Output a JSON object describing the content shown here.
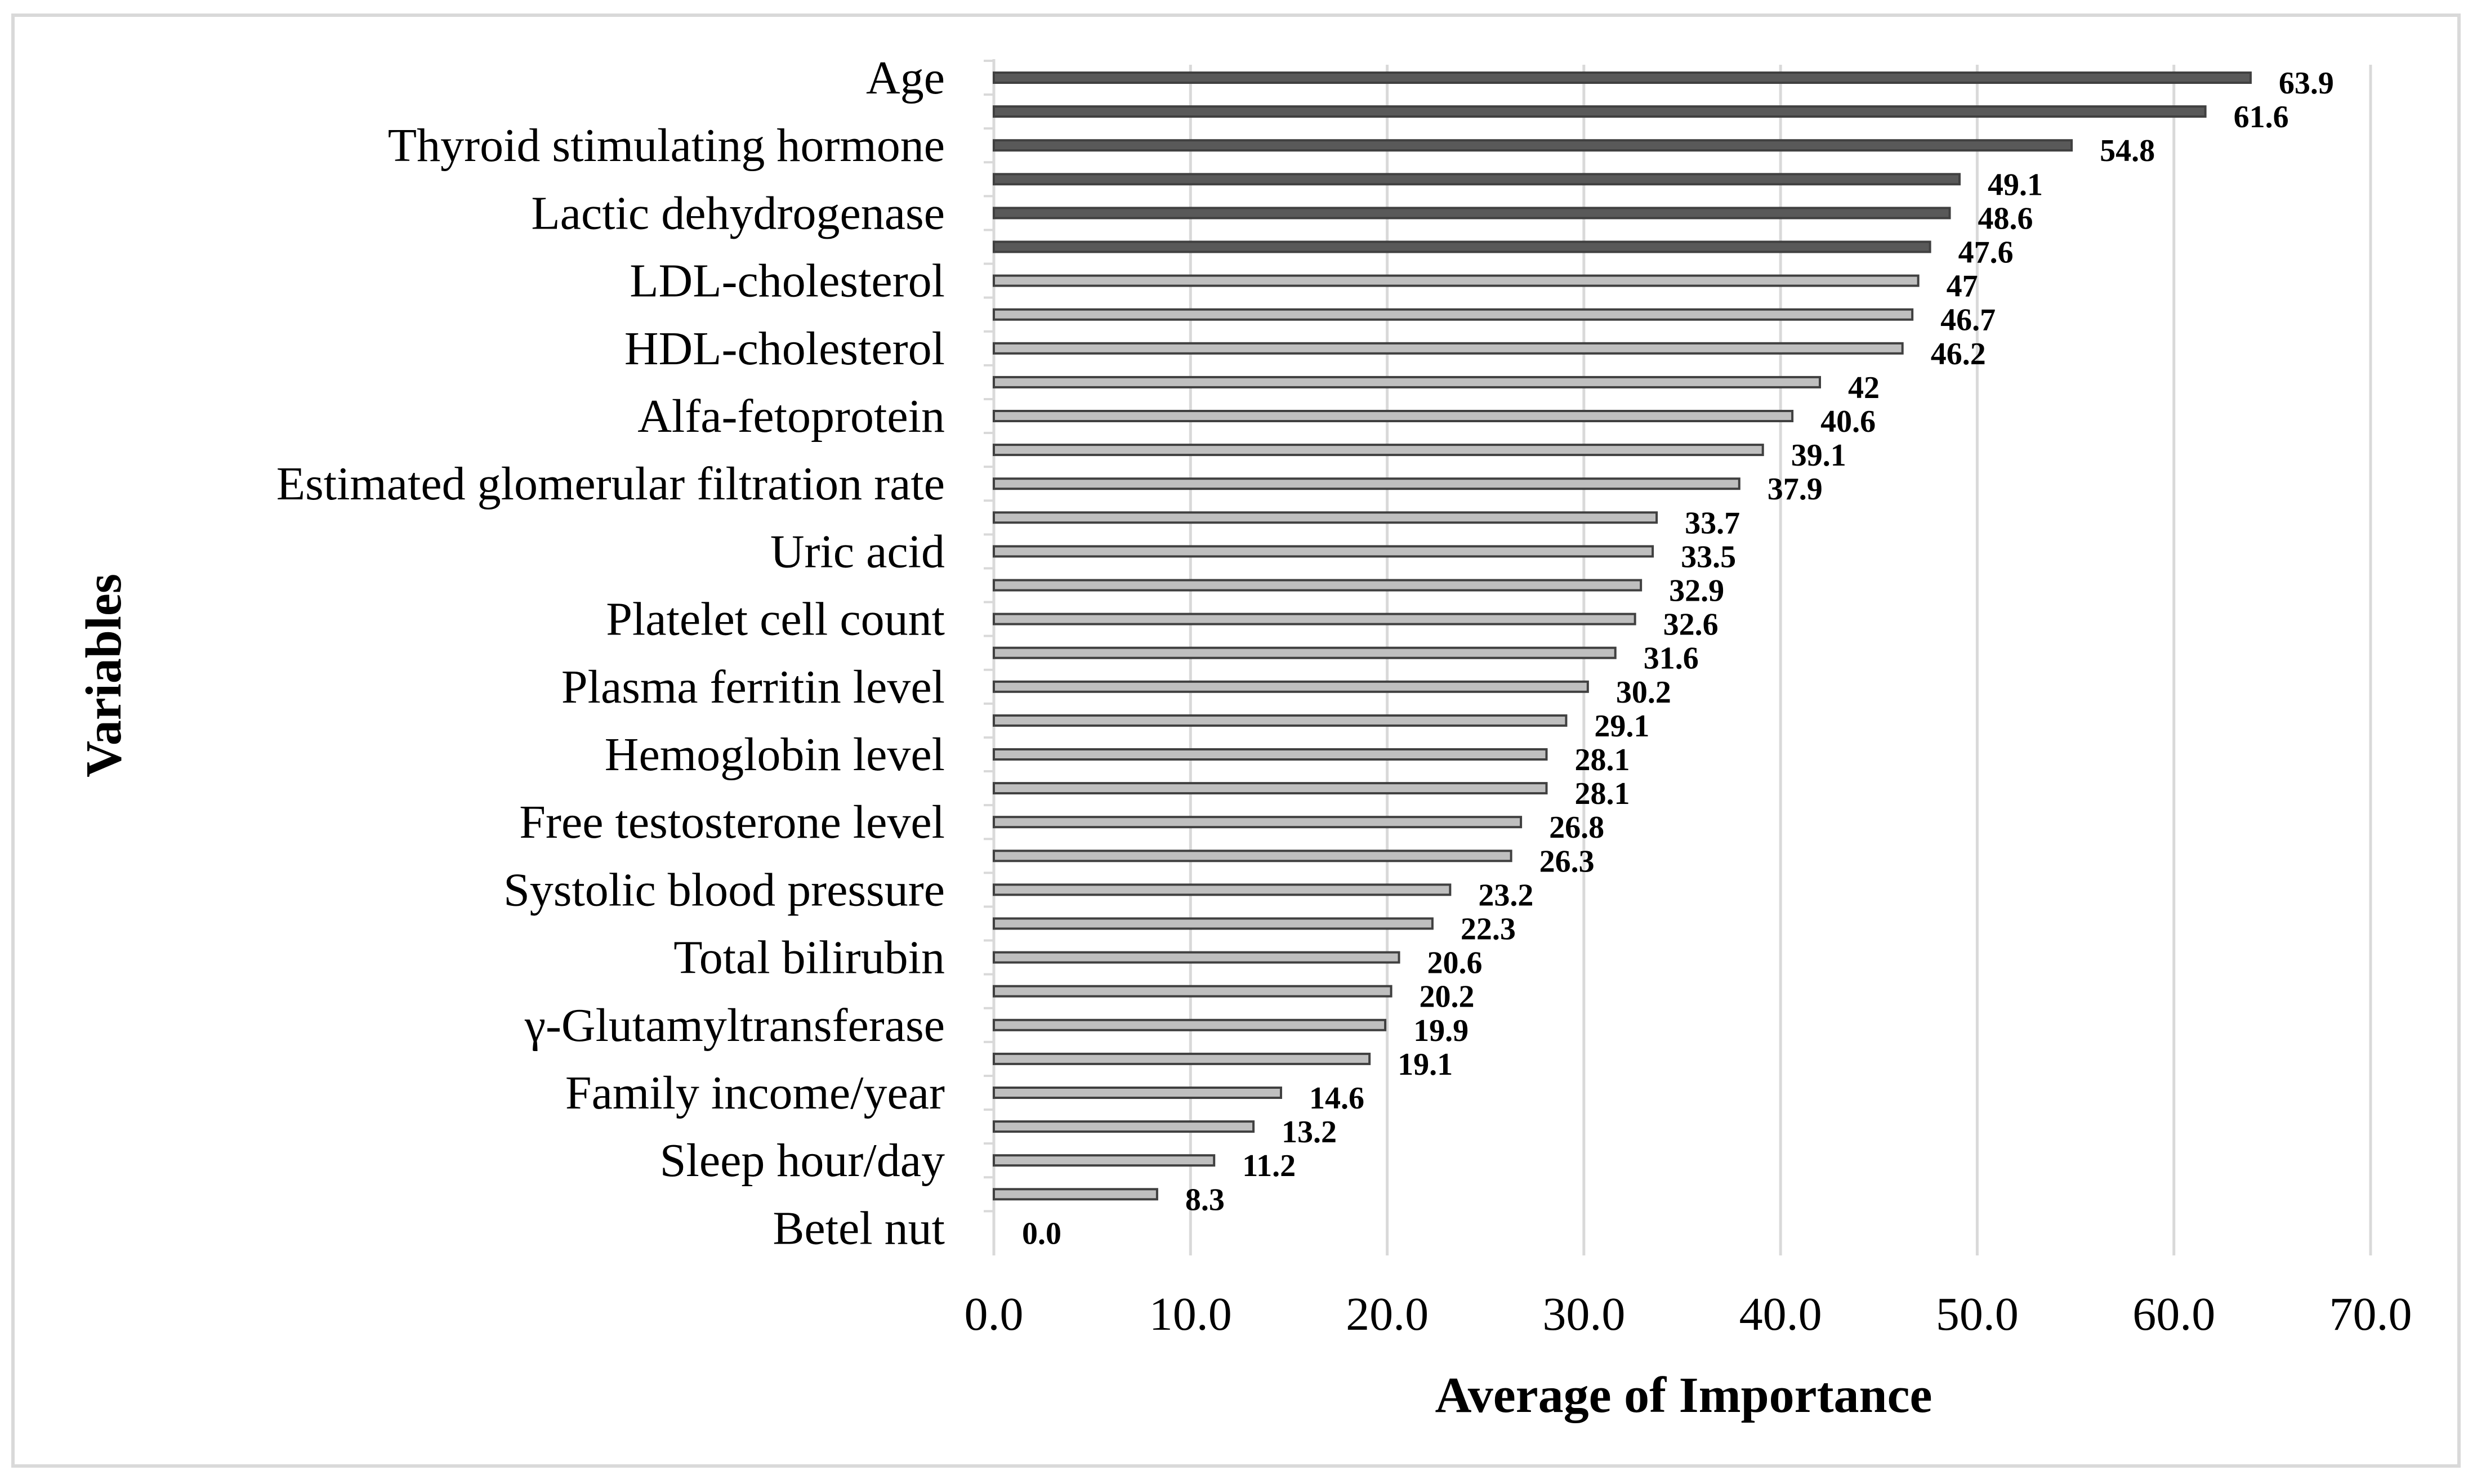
{
  "chart_data": {
    "type": "bar",
    "orientation": "horizontal",
    "xlabel": "Average of Importance",
    "ylabel": "Variables",
    "xlim": [
      0,
      70
    ],
    "xticks": [
      "0.0",
      "10.0",
      "20.0",
      "30.0",
      "40.0",
      "50.0",
      "60.0",
      "70.0"
    ],
    "grid": "vertical",
    "colors": {
      "highlight": "#595959",
      "normal": "#bfbfbf",
      "edge": "#404040"
    },
    "bars": [
      {
        "label": "Age",
        "value": 63.9,
        "value_label": "63.9",
        "highlight": true
      },
      {
        "label": "",
        "value": 61.6,
        "value_label": "61.6",
        "highlight": true
      },
      {
        "label": "Thyroid stimulating hormone",
        "value": 54.8,
        "value_label": "54.8",
        "highlight": true
      },
      {
        "label": "",
        "value": 49.1,
        "value_label": "49.1",
        "highlight": true
      },
      {
        "label": "Lactic dehydrogenase",
        "value": 48.6,
        "value_label": "48.6",
        "highlight": true
      },
      {
        "label": "",
        "value": 47.6,
        "value_label": "47.6",
        "highlight": true
      },
      {
        "label": "LDL-cholesterol",
        "value": 47,
        "value_label": "47",
        "highlight": false
      },
      {
        "label": "",
        "value": 46.7,
        "value_label": "46.7",
        "highlight": false
      },
      {
        "label": "HDL-cholesterol",
        "value": 46.2,
        "value_label": "46.2",
        "highlight": false
      },
      {
        "label": "",
        "value": 42,
        "value_label": "42",
        "highlight": false
      },
      {
        "label": "Alfa-fetoprotein",
        "value": 40.6,
        "value_label": "40.6",
        "highlight": false
      },
      {
        "label": "",
        "value": 39.1,
        "value_label": "39.1",
        "highlight": false
      },
      {
        "label": "Estimated glomerular filtration rate",
        "value": 37.9,
        "value_label": "37.9",
        "highlight": false
      },
      {
        "label": "",
        "value": 33.7,
        "value_label": "33.7",
        "highlight": false
      },
      {
        "label": "Uric acid",
        "value": 33.5,
        "value_label": "33.5",
        "highlight": false
      },
      {
        "label": "",
        "value": 32.9,
        "value_label": "32.9",
        "highlight": false
      },
      {
        "label": "Platelet cell count",
        "value": 32.6,
        "value_label": "32.6",
        "highlight": false
      },
      {
        "label": "",
        "value": 31.6,
        "value_label": "31.6",
        "highlight": false
      },
      {
        "label": "Plasma ferritin level",
        "value": 30.2,
        "value_label": "30.2",
        "highlight": false
      },
      {
        "label": "",
        "value": 29.1,
        "value_label": "29.1",
        "highlight": false
      },
      {
        "label": "Hemoglobin level",
        "value": 28.1,
        "value_label": "28.1",
        "highlight": false
      },
      {
        "label": "",
        "value": 28.1,
        "value_label": "28.1",
        "highlight": false
      },
      {
        "label": "Free testosterone level",
        "value": 26.8,
        "value_label": "26.8",
        "highlight": false
      },
      {
        "label": "",
        "value": 26.3,
        "value_label": "26.3",
        "highlight": false
      },
      {
        "label": "Systolic blood pressure",
        "value": 23.2,
        "value_label": "23.2",
        "highlight": false
      },
      {
        "label": "",
        "value": 22.3,
        "value_label": "22.3",
        "highlight": false
      },
      {
        "label": "Total bilirubin",
        "value": 20.6,
        "value_label": "20.6",
        "highlight": false
      },
      {
        "label": "",
        "value": 20.2,
        "value_label": "20.2",
        "highlight": false
      },
      {
        "label": "γ-Glutamyltransferase",
        "value": 19.9,
        "value_label": "19.9",
        "highlight": false
      },
      {
        "label": "",
        "value": 19.1,
        "value_label": "19.1",
        "highlight": false
      },
      {
        "label": "Family income/year",
        "value": 14.6,
        "value_label": "14.6",
        "highlight": false
      },
      {
        "label": "",
        "value": 13.2,
        "value_label": "13.2",
        "highlight": false
      },
      {
        "label": "Sleep hour/day",
        "value": 11.2,
        "value_label": "11.2",
        "highlight": false
      },
      {
        "label": "",
        "value": 8.3,
        "value_label": "8.3",
        "highlight": false
      },
      {
        "label": "Betel nut",
        "value": 0.0,
        "value_label": "0.0",
        "highlight": false
      }
    ]
  }
}
